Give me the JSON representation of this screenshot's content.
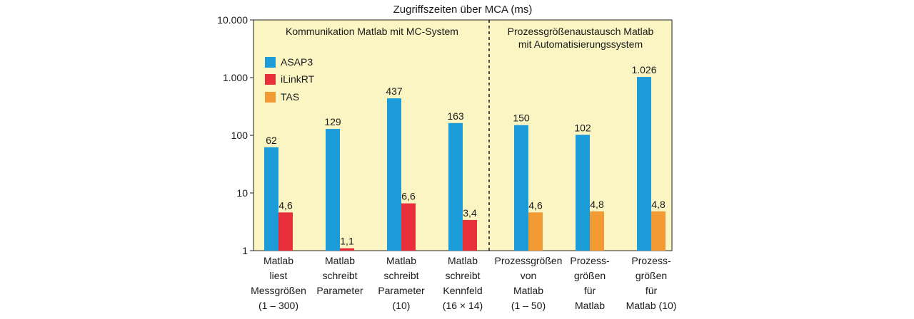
{
  "chart_data": {
    "type": "bar",
    "title": "Zugriffszeiten über MCA (ms)",
    "scale": "log",
    "ylim": [
      1,
      10000
    ],
    "y_ticks": [
      {
        "value": 1,
        "label": "1"
      },
      {
        "value": 10,
        "label": "10"
      },
      {
        "value": 100,
        "label": "100"
      },
      {
        "value": 1000,
        "label": "1.000"
      },
      {
        "value": 10000,
        "label": "10.000"
      }
    ],
    "sections": [
      {
        "label_lines": [
          "Kommunikation Matlab mit MC-System"
        ]
      },
      {
        "label_lines": [
          "Prozessgrößenaustausch Matlab",
          "mit Automatisierungssystem"
        ]
      }
    ],
    "categories": [
      [
        "Matlab",
        "liest",
        "Messgrößen",
        "(1 – 300)"
      ],
      [
        "Matlab",
        "schreibt",
        "Parameter"
      ],
      [
        "Matlab",
        "schreibt",
        "Parameter",
        "(10)"
      ],
      [
        "Matlab",
        "schreibt",
        "Kennfeld",
        "(16 × 14)"
      ],
      [
        "Prozessgrößen",
        "von",
        "Matlab",
        "(1 – 50)"
      ],
      [
        "Prozess-",
        "größen",
        "für",
        "Matlab"
      ],
      [
        "Prozess-",
        "größen",
        "für",
        "Matlab (10)"
      ]
    ],
    "series": [
      {
        "name": "ASAP3",
        "color": "#1b9bd8",
        "values": [
          62,
          129,
          437,
          163,
          150,
          102,
          1026
        ],
        "labels": [
          "62",
          "129",
          "437",
          "163",
          "150",
          "102",
          "1.026"
        ]
      },
      {
        "name": "iLinkRT",
        "color": "#e8303a",
        "values": [
          4.6,
          1.1,
          6.6,
          3.4,
          null,
          null,
          null
        ],
        "labels": [
          "4,6",
          "1,1",
          "6,6",
          "3,4",
          "",
          "",
          ""
        ]
      },
      {
        "name": "TAS",
        "color": "#f29a33",
        "values": [
          null,
          null,
          null,
          null,
          4.6,
          4.8,
          4.8
        ],
        "labels": [
          "",
          "",
          "",
          "",
          "4,6",
          "4,8",
          "4,8"
        ]
      }
    ],
    "legend_position": "top-left",
    "background_color": "#fbf5c4",
    "grid": false
  }
}
